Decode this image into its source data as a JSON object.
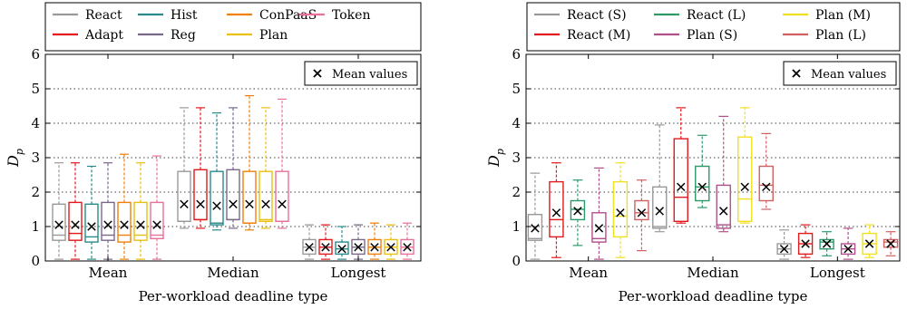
{
  "chart_data": [
    {
      "type": "box",
      "xlabel": "Per-workload deadline type",
      "ylabel": "D",
      "ylabel_sub": "p",
      "ylim": [
        0,
        6
      ],
      "yticks": [
        0,
        1,
        2,
        3,
        4,
        5,
        6
      ],
      "grid": "horizontal-dotted",
      "categories": [
        "Mean",
        "Median",
        "Longest"
      ],
      "mean_legend": "Mean values",
      "legend_placement": "top",
      "series": [
        {
          "name": "React",
          "color": "#999999",
          "stats": [
            [
              0.05,
              0.6,
              0.75,
              1.65,
              2.85,
              1.05
            ],
            [
              0.95,
              1.15,
              1.15,
              2.6,
              4.45,
              1.65
            ],
            [
              0.05,
              0.2,
              0.4,
              0.62,
              1.05,
              0.4
            ]
          ]
        },
        {
          "name": "Adapt",
          "color": "#e31a1c",
          "stats": [
            [
              0.05,
              0.6,
              0.8,
              1.7,
              2.85,
              1.05
            ],
            [
              0.95,
              1.2,
              1.2,
              2.65,
              4.45,
              1.65
            ],
            [
              0.05,
              0.2,
              0.4,
              0.62,
              1.05,
              0.4
            ]
          ]
        },
        {
          "name": "Hist",
          "color": "#2a8a8a",
          "stats": [
            [
              0.05,
              0.55,
              0.7,
              1.65,
              2.75,
              1.0
            ],
            [
              0.9,
              1.05,
              1.1,
              2.6,
              4.3,
              1.6
            ],
            [
              0.05,
              0.2,
              0.35,
              0.55,
              1.0,
              0.35
            ]
          ]
        },
        {
          "name": "Reg",
          "color": "#7a6888",
          "stats": [
            [
              0.05,
              0.6,
              0.75,
              1.7,
              2.85,
              1.05
            ],
            [
              0.95,
              1.2,
              1.2,
              2.65,
              4.45,
              1.65
            ],
            [
              0.05,
              0.2,
              0.4,
              0.62,
              1.05,
              0.4
            ]
          ]
        },
        {
          "name": "ConPaaS",
          "color": "#f07f0b",
          "stats": [
            [
              0.05,
              0.55,
              0.75,
              1.7,
              3.1,
              1.05
            ],
            [
              0.9,
              1.1,
              1.1,
              2.6,
              4.8,
              1.65
            ],
            [
              0.05,
              0.2,
              0.4,
              0.62,
              1.1,
              0.4
            ]
          ]
        },
        {
          "name": "Plan",
          "color": "#e8c010",
          "stats": [
            [
              0.05,
              0.6,
              0.75,
              1.7,
              2.85,
              1.05
            ],
            [
              0.95,
              1.15,
              1.2,
              2.6,
              4.45,
              1.65
            ],
            [
              0.05,
              0.2,
              0.4,
              0.62,
              1.05,
              0.4
            ]
          ]
        },
        {
          "name": "Token",
          "color": "#e8709a",
          "stats": [
            [
              0.05,
              0.65,
              0.75,
              1.7,
              3.05,
              1.05
            ],
            [
              0.95,
              1.15,
              1.15,
              2.6,
              4.7,
              1.65
            ],
            [
              0.05,
              0.2,
              0.4,
              0.62,
              1.1,
              0.4
            ]
          ]
        }
      ]
    },
    {
      "type": "box",
      "xlabel": "Per-workload deadline type",
      "ylabel": "D",
      "ylabel_sub": "p",
      "ylim": [
        0,
        6
      ],
      "yticks": [
        0,
        1,
        2,
        3,
        4,
        5,
        6
      ],
      "grid": "horizontal-dotted",
      "categories": [
        "Mean",
        "Median",
        "Longest"
      ],
      "mean_legend": "Mean values",
      "legend_placement": "top",
      "series": [
        {
          "name": "React (S)",
          "color": "#999999",
          "stats": [
            [
              0.05,
              0.6,
              0.65,
              1.35,
              2.55,
              0.95
            ],
            [
              0.85,
              0.95,
              1.0,
              2.15,
              3.95,
              1.45
            ],
            [
              0.05,
              0.2,
              0.35,
              0.5,
              0.9,
              0.35
            ]
          ]
        },
        {
          "name": "React (M)",
          "color": "#e31a1c",
          "stats": [
            [
              0.1,
              0.7,
              1.2,
              2.3,
              2.85,
              1.4
            ],
            [
              1.1,
              1.15,
              1.85,
              3.55,
              4.45,
              2.15
            ],
            [
              0.1,
              0.2,
              0.5,
              0.8,
              1.05,
              0.5
            ]
          ]
        },
        {
          "name": "React (L)",
          "color": "#2a9a6a",
          "stats": [
            [
              0.45,
              1.2,
              1.5,
              1.75,
              2.35,
              1.45
            ],
            [
              1.55,
              1.75,
              2.15,
              2.75,
              3.65,
              2.15
            ],
            [
              0.15,
              0.35,
              0.55,
              0.62,
              0.85,
              0.5
            ]
          ]
        },
        {
          "name": "Plan (S)",
          "color": "#b0508a",
          "stats": [
            [
              0.05,
              0.55,
              0.65,
              1.4,
              2.7,
              0.95
            ],
            [
              0.85,
              0.95,
              1.05,
              2.2,
              4.2,
              1.45
            ],
            [
              0.05,
              0.2,
              0.35,
              0.5,
              0.95,
              0.35
            ]
          ]
        },
        {
          "name": "Plan (M)",
          "color": "#f0e020",
          "stats": [
            [
              0.1,
              0.7,
              1.3,
              2.3,
              2.85,
              1.4
            ],
            [
              1.1,
              1.15,
              1.8,
              3.6,
              4.45,
              2.15
            ],
            [
              0.1,
              0.2,
              0.5,
              0.8,
              1.05,
              0.5
            ]
          ]
        },
        {
          "name": "Plan (L)",
          "color": "#d06060",
          "stats": [
            [
              0.3,
              1.2,
              1.4,
              1.75,
              2.35,
              1.4
            ],
            [
              1.5,
              1.75,
              2.2,
              2.75,
              3.7,
              2.15
            ],
            [
              0.15,
              0.4,
              0.55,
              0.62,
              0.85,
              0.5
            ]
          ]
        }
      ]
    }
  ]
}
